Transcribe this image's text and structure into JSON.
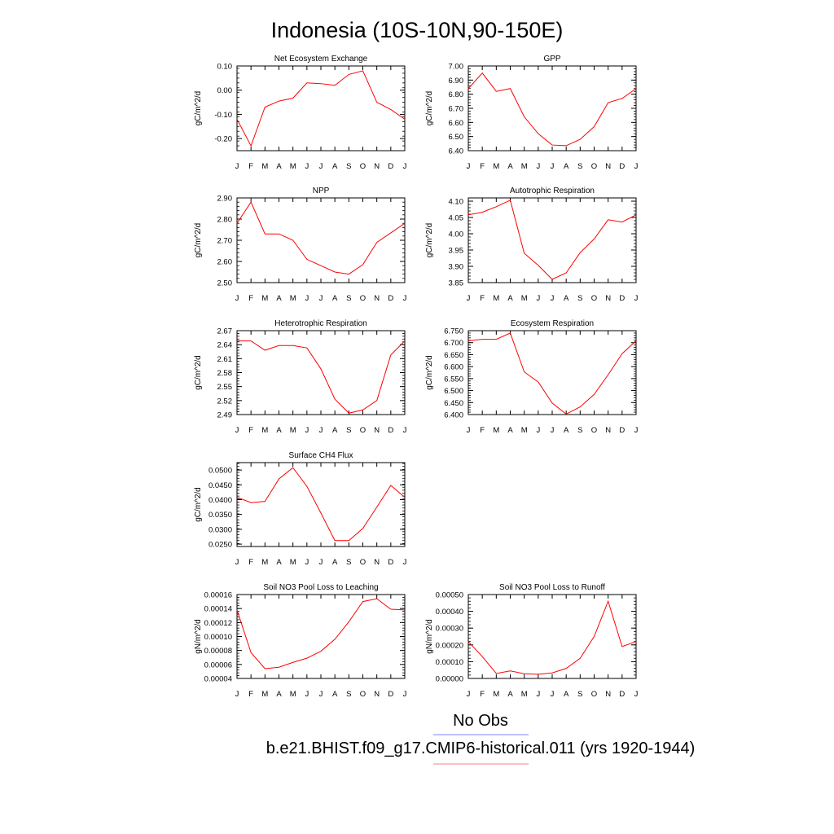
{
  "figure": {
    "title": "Indonesia (10S-10N,90-150E)",
    "legend": {
      "obs_label": "No Obs",
      "obs_color": "#8080ff",
      "model_label": "b.e21.BHIST.f09_g17.CMIP6-historical.011 (yrs 1920-1944)",
      "model_color": "#ff8080"
    },
    "line_color": "#ff0000"
  },
  "chart_data": [
    {
      "type": "line",
      "title": "Net Ecosystem Exchange",
      "ylabel": "gC/m^2/d",
      "categories": [
        "J",
        "F",
        "M",
        "A",
        "M",
        "J",
        "J",
        "A",
        "S",
        "O",
        "N",
        "D",
        "J"
      ],
      "values": [
        -0.12,
        -0.23,
        -0.07,
        -0.045,
        -0.033,
        0.03,
        0.027,
        0.02,
        0.065,
        0.08,
        -0.05,
        -0.08,
        -0.12
      ],
      "ylim": [
        -0.25,
        0.1
      ],
      "yticks": [
        -0.2,
        -0.1,
        0.0,
        0.1
      ],
      "ytick_labels": [
        "-0.20",
        "-0.10",
        "0.00",
        "0.10"
      ],
      "grid": false
    },
    {
      "type": "line",
      "title": "GPP",
      "ylabel": "gC/m^2/d",
      "categories": [
        "J",
        "F",
        "M",
        "A",
        "M",
        "J",
        "J",
        "A",
        "S",
        "O",
        "N",
        "D",
        "J"
      ],
      "values": [
        6.84,
        6.95,
        6.82,
        6.84,
        6.64,
        6.52,
        6.44,
        6.435,
        6.48,
        6.57,
        6.74,
        6.77,
        6.84
      ],
      "ylim": [
        6.4,
        7.0
      ],
      "yticks": [
        6.4,
        6.5,
        6.6,
        6.7,
        6.8,
        6.9,
        7.0
      ],
      "ytick_labels": [
        "6.40",
        "6.50",
        "6.60",
        "6.70",
        "6.80",
        "6.90",
        "7.00"
      ],
      "grid": false
    },
    {
      "type": "line",
      "title": "NPP",
      "ylabel": "gC/m^2/d",
      "categories": [
        "J",
        "F",
        "M",
        "A",
        "M",
        "J",
        "J",
        "A",
        "S",
        "O",
        "N",
        "D",
        "J"
      ],
      "values": [
        2.78,
        2.88,
        2.73,
        2.73,
        2.7,
        2.61,
        2.58,
        2.55,
        2.54,
        2.585,
        2.69,
        2.735,
        2.78
      ],
      "ylim": [
        2.5,
        2.9
      ],
      "yticks": [
        2.5,
        2.6,
        2.7,
        2.8,
        2.9
      ],
      "ytick_labels": [
        "2.50",
        "2.60",
        "2.70",
        "2.80",
        "2.90"
      ],
      "grid": false
    },
    {
      "type": "line",
      "title": "Autotrophic Respiration",
      "ylabel": "gC/m^2/d",
      "categories": [
        "J",
        "F",
        "M",
        "A",
        "M",
        "J",
        "J",
        "A",
        "S",
        "O",
        "N",
        "D",
        "J"
      ],
      "values": [
        4.058,
        4.066,
        4.083,
        4.103,
        3.94,
        3.903,
        3.86,
        3.88,
        3.942,
        3.984,
        4.043,
        4.036,
        4.058
      ],
      "ylim": [
        3.85,
        4.11
      ],
      "yticks": [
        3.85,
        3.9,
        3.95,
        4.0,
        4.05,
        4.1
      ],
      "ytick_labels": [
        "3.85",
        "3.90",
        "3.95",
        "4.00",
        "4.05",
        "4.10"
      ],
      "grid": false
    },
    {
      "type": "line",
      "title": "Heterotrophic Respiration",
      "ylabel": "gC/m^2/d",
      "categories": [
        "J",
        "F",
        "M",
        "A",
        "M",
        "J",
        "J",
        "A",
        "S",
        "O",
        "N",
        "D",
        "J"
      ],
      "values": [
        2.648,
        2.648,
        2.628,
        2.638,
        2.638,
        2.633,
        2.588,
        2.523,
        2.493,
        2.5,
        2.52,
        2.618,
        2.648
      ],
      "ylim": [
        2.49,
        2.67
      ],
      "yticks": [
        2.49,
        2.52,
        2.55,
        2.58,
        2.61,
        2.64,
        2.67
      ],
      "ytick_labels": [
        "2.49",
        "2.52",
        "2.55",
        "2.58",
        "2.61",
        "2.64",
        "2.67"
      ],
      "grid": false
    },
    {
      "type": "line",
      "title": "Ecosystem Respiration",
      "ylabel": "gC/m^2/d",
      "categories": [
        "J",
        "F",
        "M",
        "A",
        "M",
        "J",
        "J",
        "A",
        "S",
        "O",
        "N",
        "D",
        "J"
      ],
      "values": [
        6.708,
        6.714,
        6.714,
        6.74,
        6.578,
        6.536,
        6.448,
        6.402,
        6.432,
        6.484,
        6.566,
        6.654,
        6.708
      ],
      "ylim": [
        6.4,
        6.75
      ],
      "yticks": [
        6.4,
        6.45,
        6.5,
        6.55,
        6.6,
        6.65,
        6.7,
        6.75
      ],
      "ytick_labels": [
        "6.400",
        "6.450",
        "6.500",
        "6.550",
        "6.600",
        "6.650",
        "6.700",
        "6.750"
      ],
      "grid": false
    },
    {
      "type": "line",
      "title": "Surface CH4 Flux",
      "ylabel": "gC/m^2/d",
      "categories": [
        "J",
        "F",
        "M",
        "A",
        "M",
        "J",
        "J",
        "A",
        "S",
        "O",
        "N",
        "D",
        "J"
      ],
      "values": [
        0.0408,
        0.039,
        0.0394,
        0.047,
        0.0508,
        0.0445,
        0.0355,
        0.0262,
        0.0262,
        0.0303,
        0.0375,
        0.0448,
        0.0408
      ],
      "ylim": [
        0.0242,
        0.0525
      ],
      "yticks": [
        0.025,
        0.03,
        0.035,
        0.04,
        0.045,
        0.05
      ],
      "ytick_labels": [
        "0.0250",
        "0.0300",
        "0.0350",
        "0.0400",
        "0.0450",
        "0.0500"
      ],
      "grid": false
    },
    {
      "type": "line",
      "title": "Soil NO3 Pool Loss to Leaching",
      "ylabel": "gN/m^2/d",
      "categories": [
        "J",
        "F",
        "M",
        "A",
        "M",
        "J",
        "J",
        "A",
        "S",
        "O",
        "N",
        "D",
        "J"
      ],
      "values": [
        0.000138,
        7.7e-05,
        5.4e-05,
        5.6e-05,
        6.3e-05,
        6.9e-05,
        7.9e-05,
        9.6e-05,
        0.000121,
        0.00015,
        0.000154,
        0.000139,
        0.000138
      ],
      "ylim": [
        4e-05,
        0.00016
      ],
      "yticks": [
        4e-05,
        6e-05,
        8e-05,
        0.0001,
        0.00012,
        0.00014,
        0.00016
      ],
      "ytick_labels": [
        "0.00004",
        "0.00006",
        "0.00008",
        "0.00010",
        "0.00012",
        "0.00014",
        "0.00016"
      ],
      "grid": false
    },
    {
      "type": "line",
      "title": "Soil NO3 Pool Loss to Runoff",
      "ylabel": "gN/m^2/d",
      "categories": [
        "J",
        "F",
        "M",
        "A",
        "M",
        "J",
        "J",
        "A",
        "S",
        "O",
        "N",
        "D",
        "J"
      ],
      "values": [
        0.00022,
        0.00013,
        3e-05,
        4.5e-05,
        2.8e-05,
        2.5e-05,
        3.3e-05,
        6e-05,
        0.00012,
        0.00025,
        0.00046,
        0.00019,
        0.00022
      ],
      "ylim": [
        0.0,
        0.0005
      ],
      "yticks": [
        0.0,
        0.0001,
        0.0002,
        0.0003,
        0.0004,
        0.0005
      ],
      "ytick_labels": [
        "0.00000",
        "0.00010",
        "0.00020",
        "0.00030",
        "0.00040",
        "0.00050"
      ],
      "grid": false
    }
  ]
}
